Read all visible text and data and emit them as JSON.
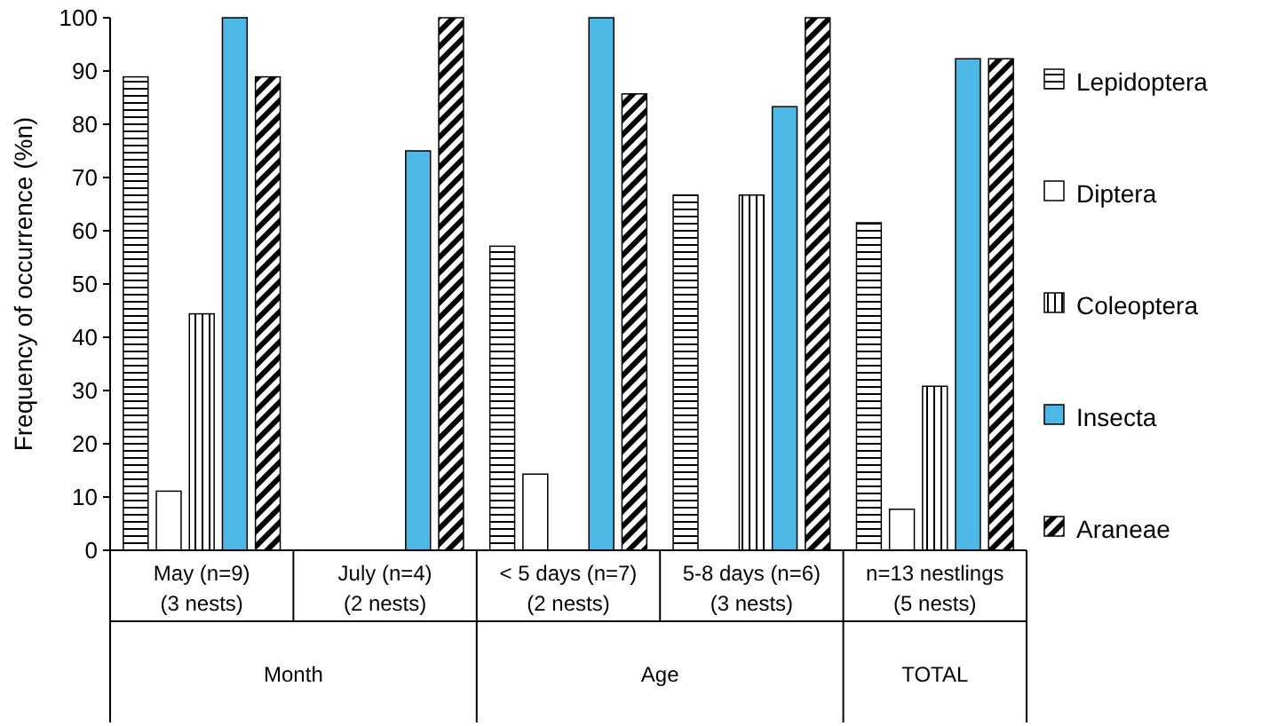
{
  "chart_data": {
    "type": "bar",
    "ylabel": "Frequency of occurrence (%n)",
    "ylim": [
      0,
      100
    ],
    "yticks": [
      0,
      10,
      20,
      30,
      40,
      50,
      60,
      70,
      80,
      90,
      100
    ],
    "legend": "right",
    "grid": false,
    "categories": [
      "May (n=9)\n(3 nests)",
      "July (n=4)\n(2 nests)",
      "< 5 days (n=7)\n(2 nests)",
      "5-8 days (n=6)\n(3 nests)",
      "n=13 nestlings\n(5 nests)"
    ],
    "series": [
      {
        "name": "Lepidoptera",
        "color": "#000000",
        "values": [
          88.9,
          0,
          57.1,
          66.7,
          61.5
        ]
      },
      {
        "name": "Diptera",
        "color": "#ffffff",
        "values": [
          11.1,
          0,
          14.3,
          0,
          7.7
        ]
      },
      {
        "name": "Coleoptera",
        "color": "#000000",
        "values": [
          44.4,
          0,
          0,
          66.7,
          30.8
        ]
      },
      {
        "name": "Insecta",
        "color": "#4db8e6",
        "values": [
          100,
          75,
          100,
          83.3,
          92.3
        ]
      },
      {
        "name": "Araneae",
        "color": "#000000",
        "values": [
          88.9,
          100,
          85.7,
          100,
          92.3
        ]
      }
    ],
    "annotations": [
      "Month",
      "Age",
      "TOTAL"
    ]
  }
}
